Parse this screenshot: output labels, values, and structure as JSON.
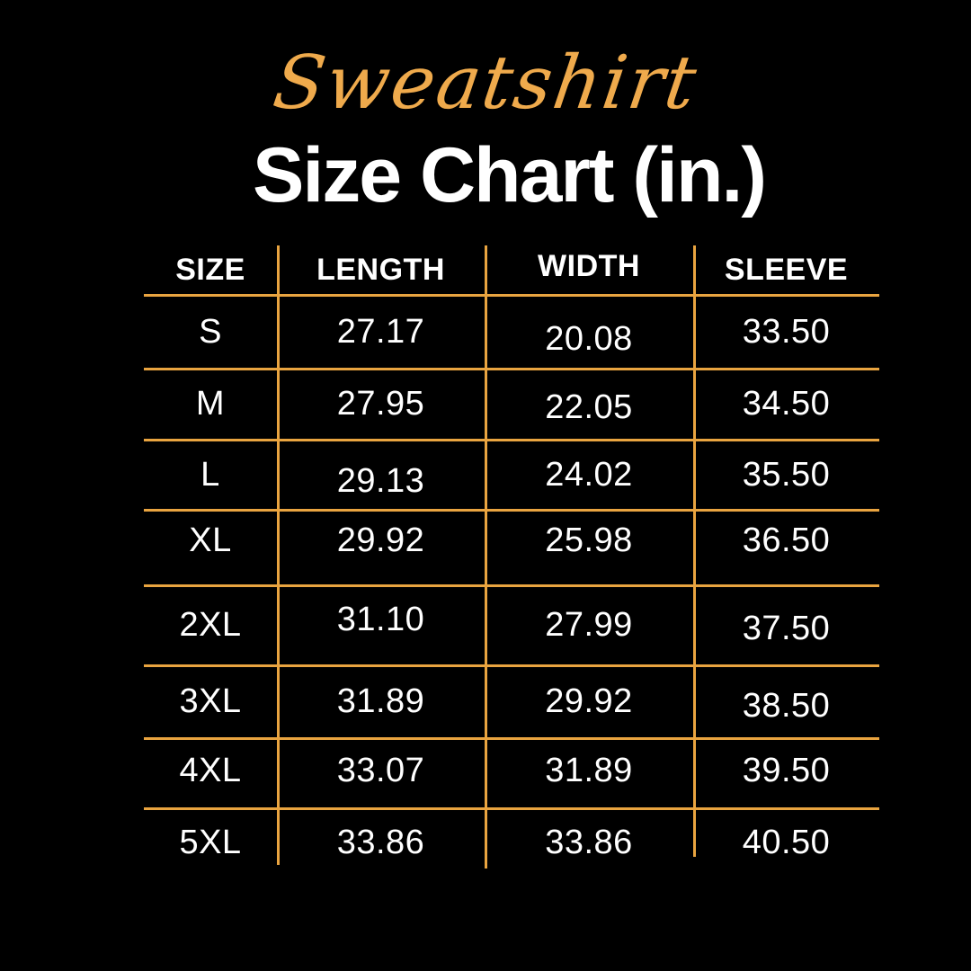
{
  "page": {
    "background": "#000000",
    "accent_orange": "#E9A440",
    "accent_orange_light": "#EFAA4C",
    "text_white": "#FFFFFF"
  },
  "header": {
    "script_title": "Sweatshirt",
    "main_title": "Size Chart (in.)"
  },
  "table": {
    "columns": [
      "SIZE",
      "LENGTH",
      "WIDTH",
      "SLEEVE"
    ],
    "rows": [
      {
        "size": "S",
        "length": "27.17",
        "width": "20.08",
        "sleeve": "33.50"
      },
      {
        "size": "M",
        "length": "27.95",
        "width": "22.05",
        "sleeve": "34.50"
      },
      {
        "size": "L",
        "length": "29.13",
        "width": "24.02",
        "sleeve": "35.50"
      },
      {
        "size": "XL",
        "length": "29.92",
        "width": "25.98",
        "sleeve": "36.50"
      },
      {
        "size": "2XL",
        "length": "31.10",
        "width": "27.99",
        "sleeve": "37.50"
      },
      {
        "size": "3XL",
        "length": "31.89",
        "width": "29.92",
        "sleeve": "38.50"
      },
      {
        "size": "4XL",
        "length": "33.07",
        "width": "31.89",
        "sleeve": "39.50"
      },
      {
        "size": "5XL",
        "length": "33.86",
        "width": "33.86",
        "sleeve": "40.50"
      }
    ]
  },
  "chart_data": {
    "type": "table",
    "title": "Sweatshirt Size Chart (in.)",
    "columns": [
      "SIZE",
      "LENGTH",
      "WIDTH",
      "SLEEVE"
    ],
    "rows": [
      [
        "S",
        27.17,
        20.08,
        33.5
      ],
      [
        "M",
        27.95,
        22.05,
        34.5
      ],
      [
        "L",
        29.13,
        24.02,
        35.5
      ],
      [
        "XL",
        29.92,
        25.98,
        36.5
      ],
      [
        "2XL",
        31.1,
        27.99,
        37.5
      ],
      [
        "3XL",
        31.89,
        29.92,
        38.5
      ],
      [
        "4XL",
        33.07,
        31.89,
        39.5
      ],
      [
        "5XL",
        33.86,
        33.86,
        40.5
      ]
    ],
    "units": "inches",
    "grid_color": "#E9A440",
    "background": "#000000",
    "text_color": "#FFFFFF"
  }
}
